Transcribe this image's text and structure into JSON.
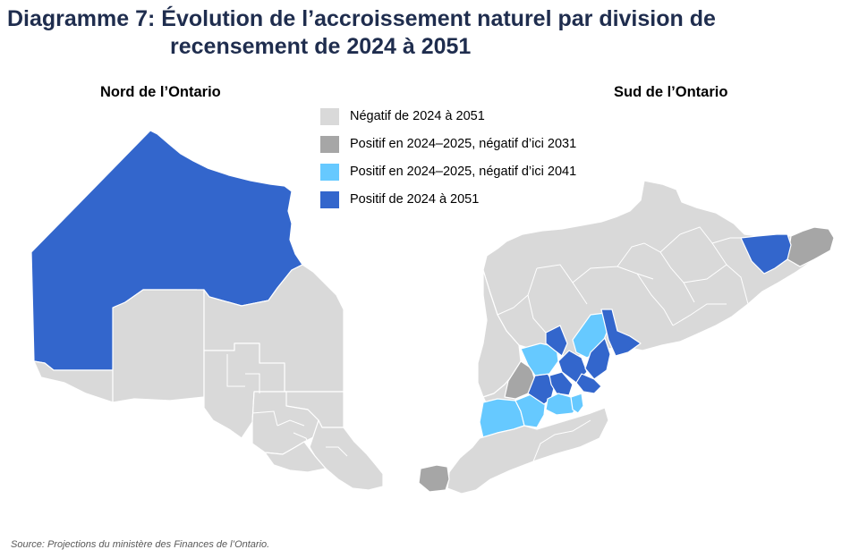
{
  "title": {
    "line1": "Diagramme 7: Évolution de l’accroissement naturel par division de",
    "line2": "recensement de 2024 à 2051"
  },
  "regions": {
    "north_label": "Nord de l’Ontario",
    "south_label": "Sud de l’Ontario"
  },
  "legend": [
    {
      "label": "Négatif de 2024 à 2051",
      "color": "#d9d9d9"
    },
    {
      "label": "Positif en 2024–2025, négatif d’ici 2031",
      "color": "#a6a6a6"
    },
    {
      "label": "Positif en 2024–2025, négatif d’ici 2041",
      "color": "#66c9ff"
    },
    {
      "label": "Positif de 2024 à 2051",
      "color": "#3366cc"
    }
  ],
  "source": "Source: Projections du ministère des Finances de l’Ontario."
}
